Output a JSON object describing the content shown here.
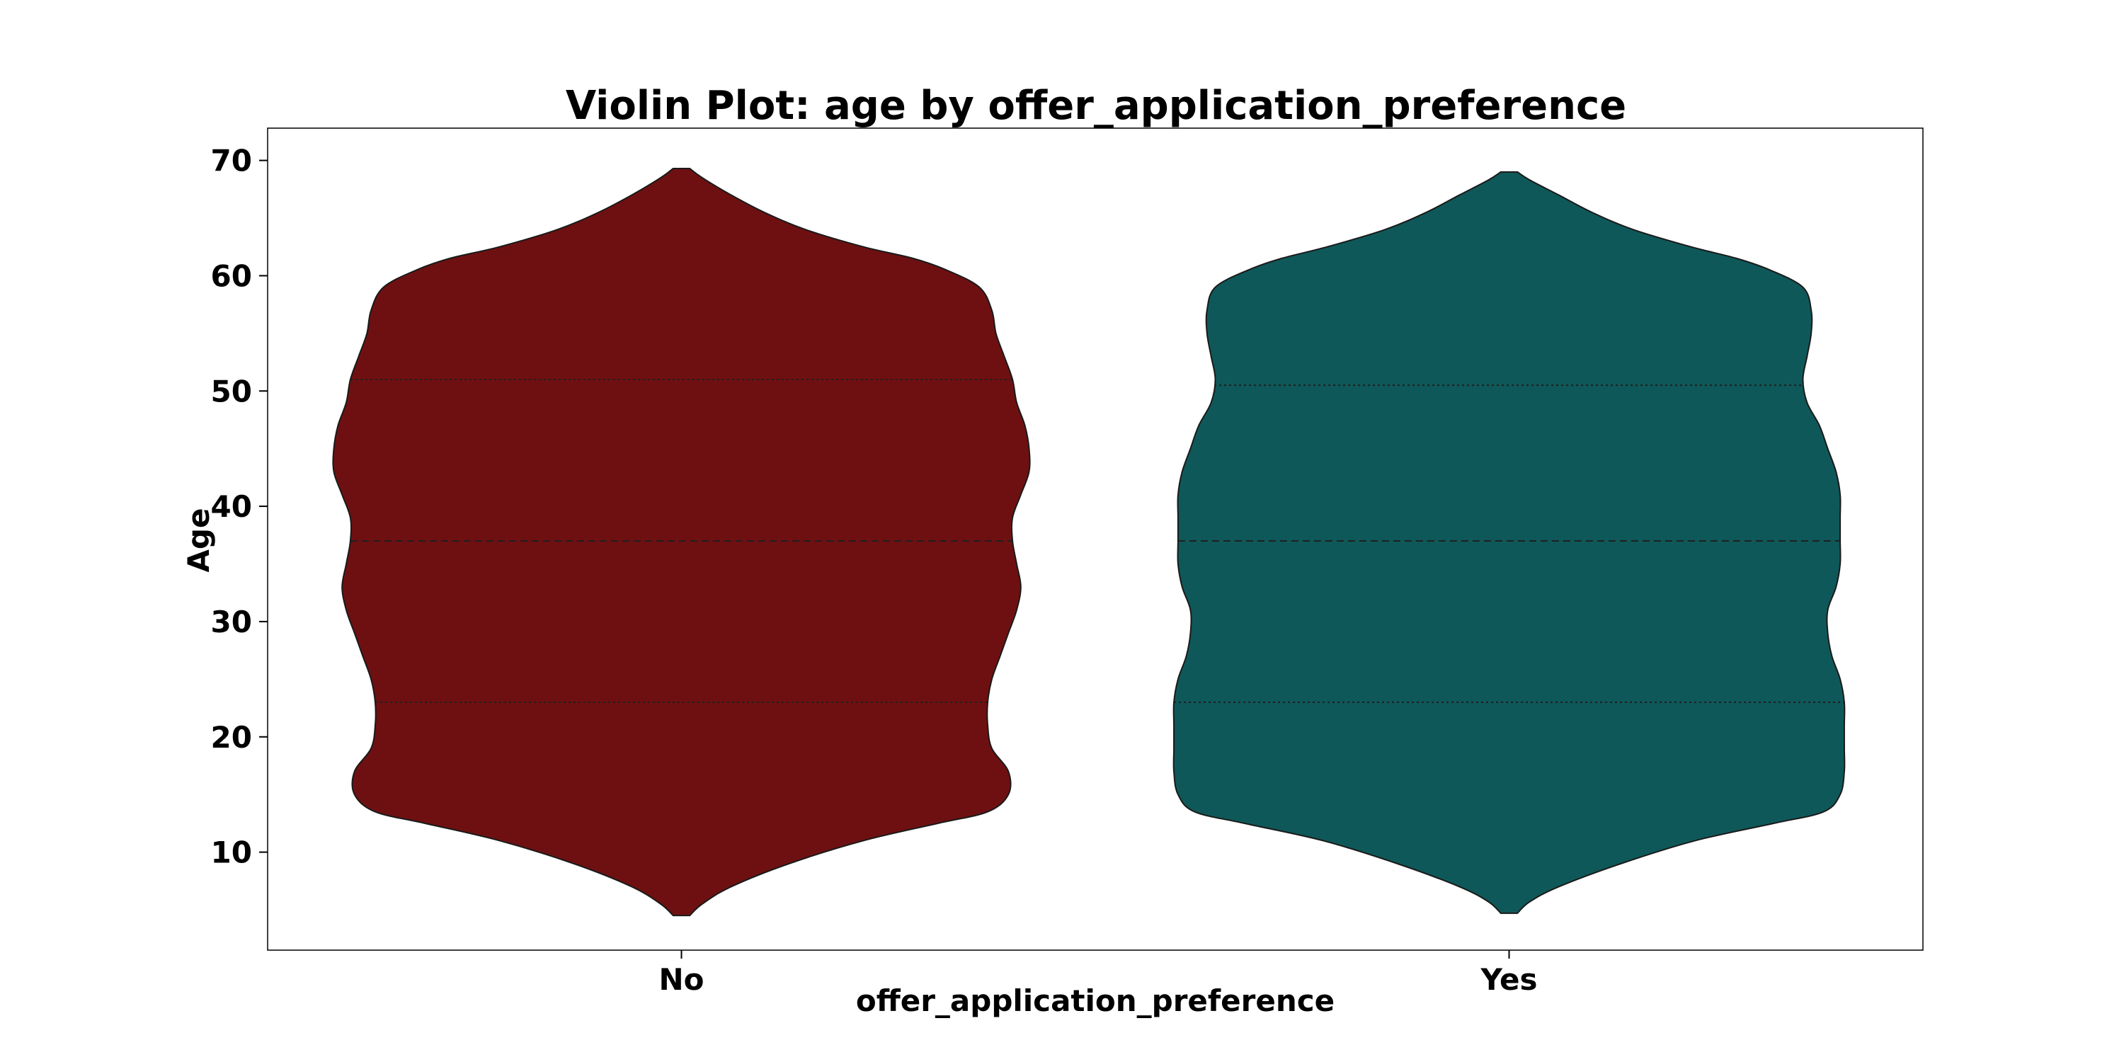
{
  "chart_data": {
    "type": "violin",
    "title": "Violin Plot: age by offer_application_preference",
    "xlabel": "offer_application_preference",
    "ylabel": "Age",
    "ylim": [
      1.5,
      72.8
    ],
    "yticks": [
      10,
      20,
      30,
      40,
      50,
      60,
      70
    ],
    "categories": [
      "No",
      "Yes"
    ],
    "grid": false,
    "legend": "none",
    "violins": [
      {
        "category": "No",
        "color": "#6e1011",
        "min": 4.5,
        "max": 69.3,
        "quartiles": [
          23,
          37,
          51
        ],
        "density_profile": [
          {
            "age": 4.5,
            "width": 0.02
          },
          {
            "age": 5.5,
            "width": 0.05
          },
          {
            "age": 7.0,
            "width": 0.12
          },
          {
            "age": 9.0,
            "width": 0.26
          },
          {
            "age": 11.0,
            "width": 0.44
          },
          {
            "age": 12.5,
            "width": 0.62
          },
          {
            "age": 13.5,
            "width": 0.74
          },
          {
            "age": 15.0,
            "width": 0.79
          },
          {
            "age": 17.0,
            "width": 0.79
          },
          {
            "age": 19.0,
            "width": 0.75
          },
          {
            "age": 21.0,
            "width": 0.74
          },
          {
            "age": 23.0,
            "width": 0.74
          },
          {
            "age": 25.0,
            "width": 0.75
          },
          {
            "age": 27.0,
            "width": 0.77
          },
          {
            "age": 29.0,
            "width": 0.79
          },
          {
            "age": 31.0,
            "width": 0.81
          },
          {
            "age": 33.0,
            "width": 0.82
          },
          {
            "age": 35.0,
            "width": 0.81
          },
          {
            "age": 37.0,
            "width": 0.8
          },
          {
            "age": 39.0,
            "width": 0.8
          },
          {
            "age": 41.0,
            "width": 0.82
          },
          {
            "age": 43.0,
            "width": 0.84
          },
          {
            "age": 45.0,
            "width": 0.84
          },
          {
            "age": 47.0,
            "width": 0.83
          },
          {
            "age": 49.0,
            "width": 0.81
          },
          {
            "age": 51.0,
            "width": 0.8
          },
          {
            "age": 53.0,
            "width": 0.78
          },
          {
            "age": 55.0,
            "width": 0.76
          },
          {
            "age": 57.0,
            "width": 0.75
          },
          {
            "age": 59.0,
            "width": 0.72
          },
          {
            "age": 60.5,
            "width": 0.64
          },
          {
            "age": 61.5,
            "width": 0.56
          },
          {
            "age": 62.5,
            "width": 0.44
          },
          {
            "age": 64.0,
            "width": 0.3
          },
          {
            "age": 65.5,
            "width": 0.2
          },
          {
            "age": 67.0,
            "width": 0.12
          },
          {
            "age": 68.5,
            "width": 0.05
          },
          {
            "age": 69.3,
            "width": 0.02
          }
        ]
      },
      {
        "category": "Yes",
        "color": "#0f5859",
        "min": 4.7,
        "max": 69.0,
        "quartiles": [
          23,
          37,
          50.5
        ],
        "density_profile": [
          {
            "age": 4.7,
            "width": 0.02
          },
          {
            "age": 5.7,
            "width": 0.05
          },
          {
            "age": 7.0,
            "width": 0.12
          },
          {
            "age": 9.0,
            "width": 0.27
          },
          {
            "age": 11.0,
            "width": 0.45
          },
          {
            "age": 12.5,
            "width": 0.64
          },
          {
            "age": 13.5,
            "width": 0.76
          },
          {
            "age": 15.0,
            "width": 0.8
          },
          {
            "age": 17.0,
            "width": 0.81
          },
          {
            "age": 19.0,
            "width": 0.81
          },
          {
            "age": 21.0,
            "width": 0.81
          },
          {
            "age": 23.0,
            "width": 0.81
          },
          {
            "age": 25.0,
            "width": 0.8
          },
          {
            "age": 27.0,
            "width": 0.78
          },
          {
            "age": 29.0,
            "width": 0.77
          },
          {
            "age": 31.0,
            "width": 0.77
          },
          {
            "age": 33.0,
            "width": 0.79
          },
          {
            "age": 35.0,
            "width": 0.8
          },
          {
            "age": 37.0,
            "width": 0.8
          },
          {
            "age": 39.0,
            "width": 0.8
          },
          {
            "age": 41.0,
            "width": 0.8
          },
          {
            "age": 43.0,
            "width": 0.79
          },
          {
            "age": 45.0,
            "width": 0.77
          },
          {
            "age": 47.0,
            "width": 0.75
          },
          {
            "age": 49.0,
            "width": 0.72
          },
          {
            "age": 51.0,
            "width": 0.71
          },
          {
            "age": 53.0,
            "width": 0.72
          },
          {
            "age": 55.0,
            "width": 0.73
          },
          {
            "age": 57.0,
            "width": 0.73
          },
          {
            "age": 59.0,
            "width": 0.71
          },
          {
            "age": 60.5,
            "width": 0.63
          },
          {
            "age": 61.5,
            "width": 0.55
          },
          {
            "age": 62.5,
            "width": 0.44
          },
          {
            "age": 64.0,
            "width": 0.3
          },
          {
            "age": 65.5,
            "width": 0.2
          },
          {
            "age": 67.0,
            "width": 0.12
          },
          {
            "age": 68.3,
            "width": 0.05
          },
          {
            "age": 69.0,
            "width": 0.02
          }
        ]
      }
    ]
  }
}
